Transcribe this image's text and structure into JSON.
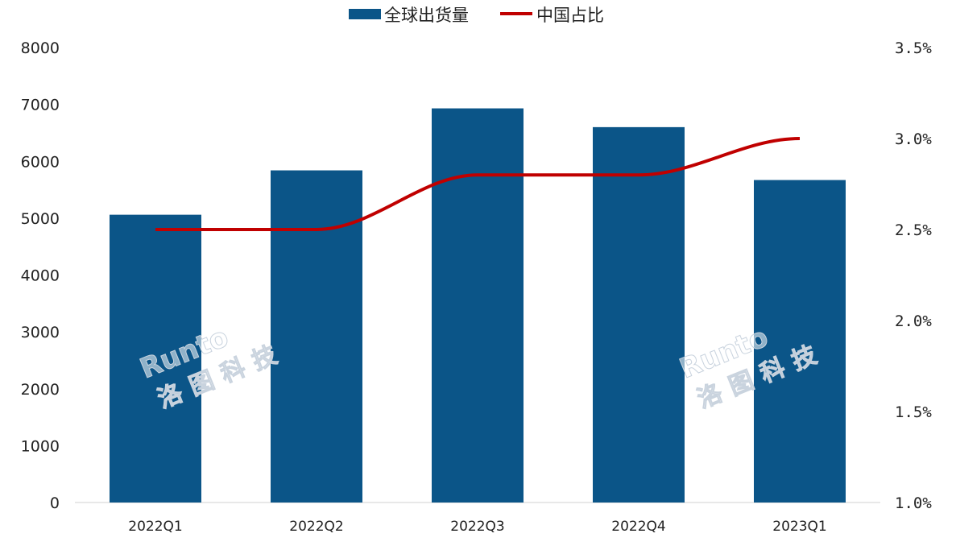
{
  "chart_data": {
    "type": "bar",
    "categories": [
      "2022Q1",
      "2022Q2",
      "2022Q3",
      "2022Q4",
      "2023Q1"
    ],
    "series": [
      {
        "name": "全球出货量",
        "type": "bar",
        "axis": "left",
        "values": [
          5060,
          5840,
          6930,
          6600,
          5670
        ]
      },
      {
        "name": "中国占比",
        "type": "line",
        "axis": "right",
        "values": [
          2.5,
          2.5,
          2.8,
          2.8,
          3.0
        ]
      }
    ],
    "y_left": {
      "ylim": [
        0,
        8000
      ],
      "ticks": [
        "0",
        "1000",
        "2000",
        "3000",
        "4000",
        "5000",
        "6000",
        "7000",
        "8000"
      ]
    },
    "y_right": {
      "ylim": [
        1.0,
        3.5
      ],
      "ticks": [
        "1.0%",
        "1.5%",
        "2.0%",
        "2.5%",
        "3.0%",
        "3.5%"
      ]
    },
    "grid": false,
    "legend_position": "top-center",
    "colors": {
      "bar": "#0b5588",
      "line": "#c00000"
    },
    "watermark": [
      "Runto",
      "洛图科技"
    ]
  }
}
